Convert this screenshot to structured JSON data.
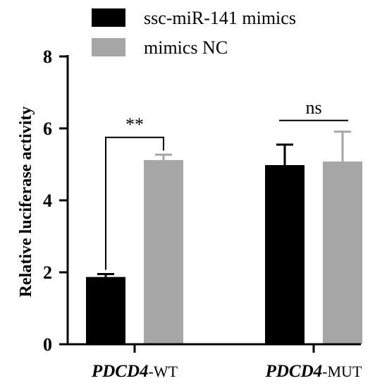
{
  "chart_data": {
    "type": "bar",
    "ylabel": "Relative luciferase activity",
    "xlabel": "",
    "ylim": [
      0,
      8
    ],
    "yticks": [
      0,
      2,
      4,
      6,
      8
    ],
    "categories": [
      {
        "gene": "PDCD4",
        "suffix": "-WT"
      },
      {
        "gene": "PDCD4",
        "suffix": "-MUT"
      }
    ],
    "series": [
      {
        "name": "ssc-miR-141 mimics",
        "color": "#000000",
        "values": [
          1.87,
          4.98
        ],
        "errors": [
          0.08,
          0.57
        ]
      },
      {
        "name": "mimics NC",
        "color": "#a6a6a6",
        "values": [
          5.12,
          5.08
        ],
        "errors": [
          0.15,
          0.83
        ]
      }
    ],
    "legend_position": "top",
    "grid": false,
    "annotations": [
      {
        "category": 0,
        "text": "**",
        "bracket": true,
        "bracket_y": 5.75
      },
      {
        "category": 1,
        "text": "ns",
        "bracket": false,
        "bracket_y": 6.22
      }
    ]
  }
}
